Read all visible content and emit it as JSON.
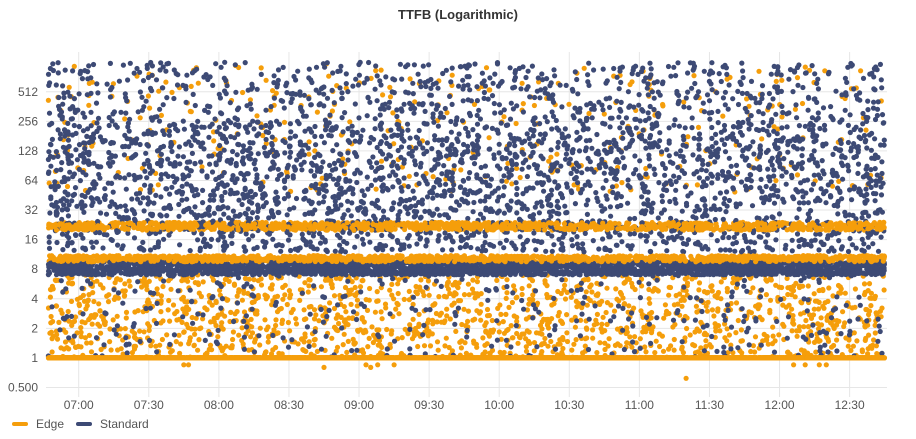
{
  "chart_data": {
    "type": "scatter",
    "title": "TTFB (Logarithmic)",
    "xlabel": "",
    "ylabel": "",
    "y_scale": "log2",
    "ylim": [
      0.4,
      1300
    ],
    "xlim": [
      "06:46",
      "12:46"
    ],
    "y_ticks": [
      0.5,
      1,
      2,
      4,
      8,
      16,
      32,
      64,
      128,
      256,
      512
    ],
    "y_tick_labels": [
      "0.500",
      "1",
      "2",
      "4",
      "8",
      "16",
      "32",
      "64",
      "128",
      "256",
      "512"
    ],
    "x_ticks": [
      "07:00",
      "07:30",
      "08:00",
      "08:30",
      "09:00",
      "09:30",
      "10:00",
      "10:30",
      "11:00",
      "11:30",
      "12:00",
      "12:30"
    ],
    "grid": true,
    "legend_position": "bottom-left",
    "series": [
      {
        "name": "Edge",
        "color": "#f59e0b",
        "bands": [
          {
            "y_min": 1,
            "y_max": 1,
            "density": "very high"
          },
          {
            "y_min": 1,
            "y_max": 7,
            "density": "high"
          },
          {
            "y_min": 9.5,
            "y_max": 11,
            "density": "medium"
          },
          {
            "y_min": 20,
            "y_max": 24,
            "density": "medium"
          },
          {
            "y_min": 48,
            "y_max": 1024,
            "density": "low"
          }
        ],
        "points": [
          {
            "x": "07:45",
            "y": 0.85
          },
          {
            "x": "07:47",
            "y": 0.85
          },
          {
            "x": "08:45",
            "y": 0.8
          },
          {
            "x": "09:03",
            "y": 0.85
          },
          {
            "x": "09:05",
            "y": 0.8
          },
          {
            "x": "09:08",
            "y": 0.85
          },
          {
            "x": "09:15",
            "y": 0.85
          },
          {
            "x": "11:20",
            "y": 0.62
          },
          {
            "x": "12:06",
            "y": 0.85
          },
          {
            "x": "12:11",
            "y": 0.85
          },
          {
            "x": "12:17",
            "y": 0.85
          },
          {
            "x": "12:20",
            "y": 0.85
          }
        ]
      },
      {
        "name": "Standard",
        "color": "#3d4a75",
        "bands": [
          {
            "y_min": 7,
            "y_max": 9.5,
            "density": "very high"
          },
          {
            "y_min": 12,
            "y_max": 256,
            "density": "very high"
          },
          {
            "y_min": 256,
            "y_max": 1024,
            "density": "medium"
          },
          {
            "y_min": 1,
            "y_max": 7,
            "density": "low"
          }
        ]
      }
    ]
  }
}
